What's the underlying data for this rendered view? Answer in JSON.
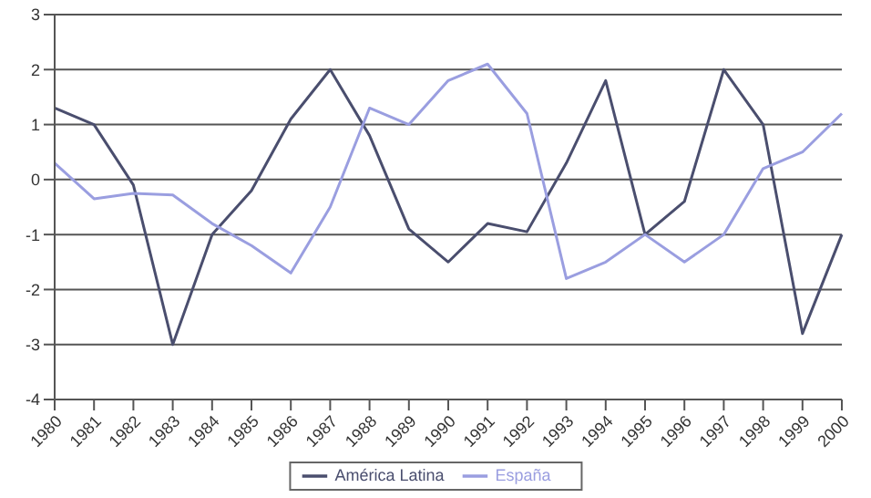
{
  "chart_data": {
    "type": "line",
    "categories": [
      "1980",
      "1981",
      "1982",
      "1983",
      "1984",
      "1985",
      "1986",
      "1987",
      "1988",
      "1989",
      "1990",
      "1991",
      "1992",
      "1993",
      "1994",
      "1995",
      "1996",
      "1997",
      "1998",
      "1999",
      "2000"
    ],
    "series": [
      {
        "name": "América Latina",
        "color": "#4a4e6e",
        "values": [
          1.3,
          1.0,
          -0.1,
          -3.0,
          -1.0,
          -0.2,
          1.1,
          2.0,
          0.8,
          -0.9,
          -1.5,
          -0.8,
          -0.95,
          0.3,
          1.8,
          -1.0,
          -0.4,
          2.0,
          1.0,
          -2.8,
          -1.0
        ]
      },
      {
        "name": "España",
        "color": "#9a9ee0",
        "values": [
          0.3,
          -0.35,
          -0.25,
          -0.28,
          -0.8,
          -1.2,
          -1.7,
          -0.5,
          1.3,
          1.0,
          1.8,
          2.1,
          1.2,
          -1.8,
          -1.5,
          -1.0,
          -1.5,
          -1.0,
          0.2,
          0.5,
          1.2
        ]
      }
    ],
    "ylim": [
      -4,
      3
    ],
    "yticks": [
      -4,
      -3,
      -2,
      -1,
      0,
      1,
      2,
      3
    ],
    "grid": "y",
    "legend": "bottom",
    "marker": "none",
    "line_style": "solid"
  }
}
